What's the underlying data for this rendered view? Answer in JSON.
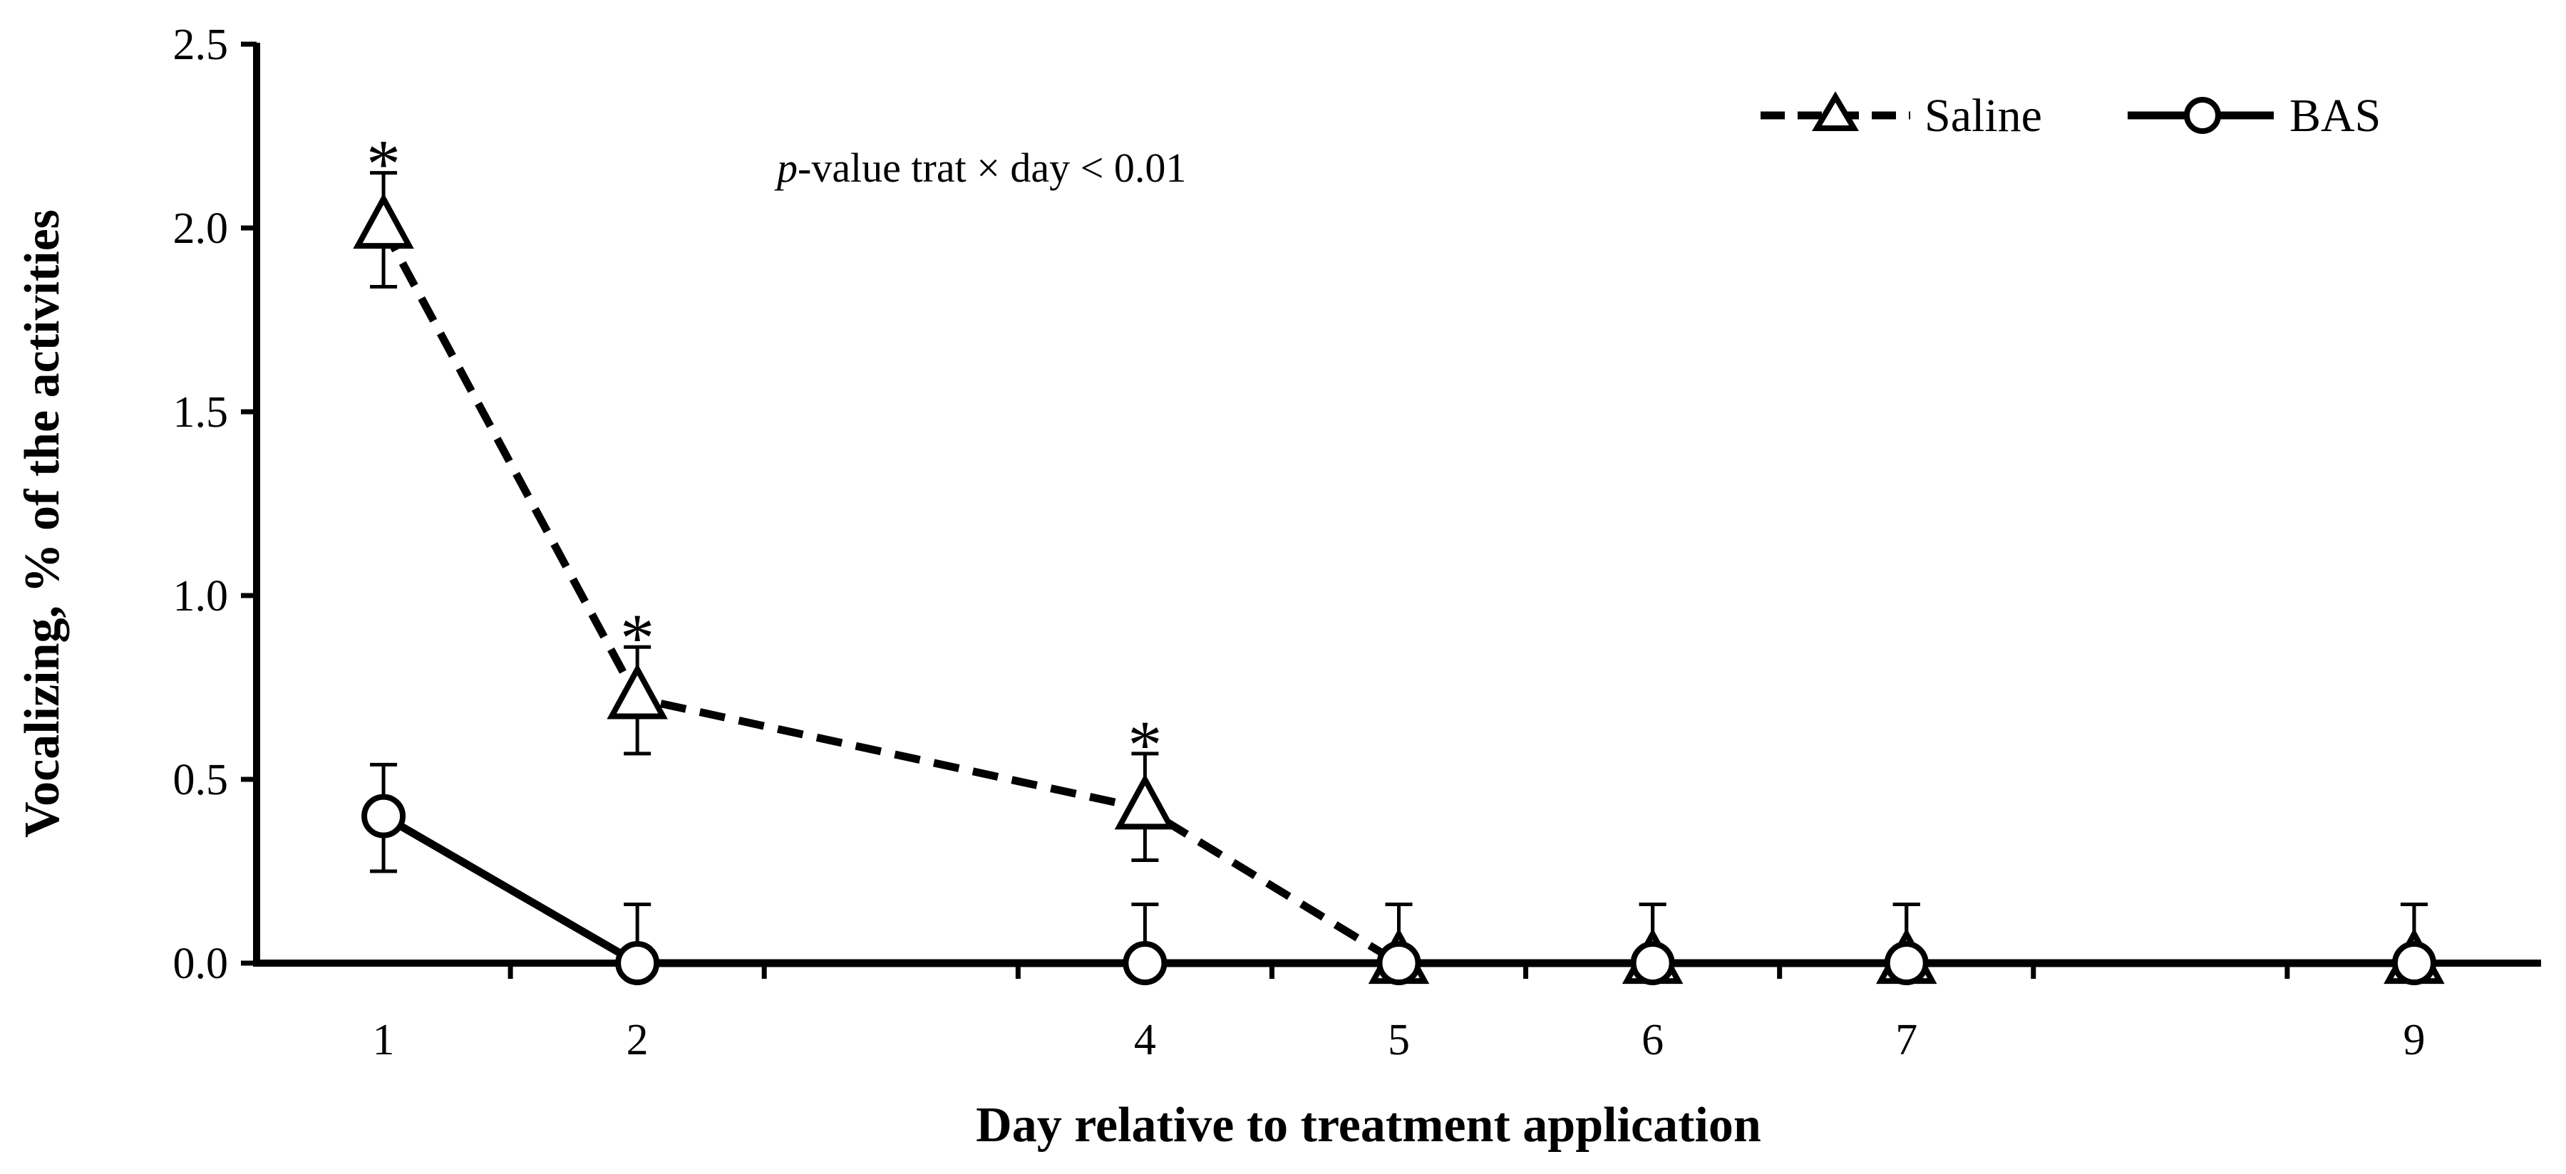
{
  "chart_data": {
    "type": "line",
    "xlabel": "Day relative to treatment application",
    "ylabel": "Vocalizing, % of the activities",
    "x": [
      1,
      2,
      4,
      5,
      6,
      7,
      9
    ],
    "x_tick_labels": [
      "1",
      "2",
      "4",
      "5",
      "6",
      "7",
      "9"
    ],
    "xlim": [
      0.5,
      9.5
    ],
    "ylim": [
      0,
      2.5
    ],
    "y_ticks": [
      0.0,
      0.5,
      1.0,
      1.5,
      2.0,
      2.5
    ],
    "y_tick_labels": [
      "0.0",
      "0.5",
      "1.0",
      "1.5",
      "2.0",
      "2.5"
    ],
    "grid": false,
    "legend_position": "top-right",
    "series": [
      {
        "name": "Saline",
        "marker": "triangle",
        "line_style": "dashed",
        "values": [
          2.0,
          0.72,
          0.42,
          0.0,
          0.0,
          0.0,
          0.0
        ],
        "error_upper": [
          2.15,
          0.86,
          0.57,
          0.16,
          0.16,
          0.16,
          0.16
        ],
        "error_lower": [
          1.84,
          0.57,
          0.28,
          0.0,
          0.0,
          0.0,
          0.0
        ]
      },
      {
        "name": "BAS",
        "marker": "circle",
        "line_style": "solid",
        "values": [
          0.4,
          0.0,
          0.0,
          0.0,
          0.0,
          0.0,
          0.0
        ],
        "error_upper": [
          0.54,
          0.16,
          0.16,
          0.16,
          0.16,
          0.16,
          0.16
        ],
        "error_lower": [
          0.25,
          0.0,
          0.0,
          0.0,
          0.0,
          0.0,
          0.0
        ]
      }
    ],
    "significance_markers": [
      {
        "x": 1,
        "label": "*"
      },
      {
        "x": 2,
        "label": "*"
      },
      {
        "x": 4,
        "label": "*"
      }
    ],
    "annotation": {
      "italic_part": "p",
      "rest": "-value trat × day < 0.01"
    },
    "colors": {
      "line": "#000000",
      "marker_fill": "#ffffff",
      "background": "#ffffff"
    }
  }
}
